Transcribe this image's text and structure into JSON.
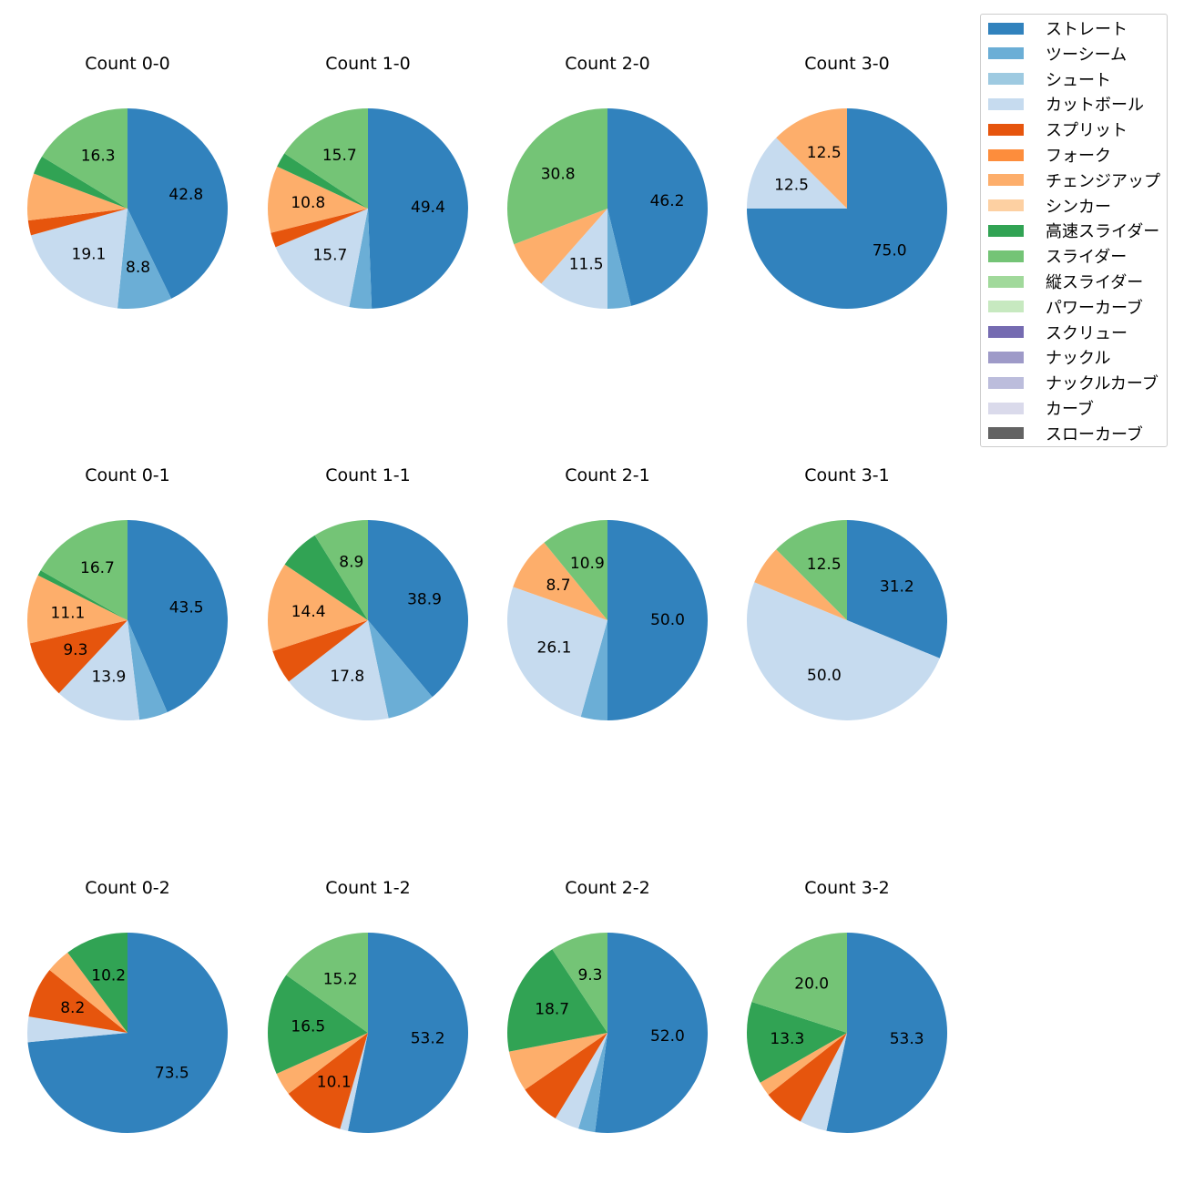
{
  "chart_data": {
    "type": "pie",
    "categories": [
      {
        "key": "straight",
        "label": "ストレート",
        "color": "#3182bd"
      },
      {
        "key": "twoseam",
        "label": "ツーシーム",
        "color": "#6baed6"
      },
      {
        "key": "shoot",
        "label": "シュート",
        "color": "#9ecae1"
      },
      {
        "key": "cutball",
        "label": "カットボール",
        "color": "#c6dbef"
      },
      {
        "key": "split",
        "label": "スプリット",
        "color": "#e6550d"
      },
      {
        "key": "fork",
        "label": "フォーク",
        "color": "#fd8d3c"
      },
      {
        "key": "changeup",
        "label": "チェンジアップ",
        "color": "#fdae6b"
      },
      {
        "key": "sinker",
        "label": "シンカー",
        "color": "#fdd0a2"
      },
      {
        "key": "fast_slider",
        "label": "高速スライダー",
        "color": "#31a354"
      },
      {
        "key": "slider",
        "label": "スライダー",
        "color": "#74c476"
      },
      {
        "key": "vslider",
        "label": "縦スライダー",
        "color": "#a1d99b"
      },
      {
        "key": "powercurve",
        "label": "パワーカーブ",
        "color": "#c7e9c0"
      },
      {
        "key": "screw",
        "label": "スクリュー",
        "color": "#756bb1"
      },
      {
        "key": "knuckle",
        "label": "ナックル",
        "color": "#9e9ac8"
      },
      {
        "key": "knucklecurve",
        "label": "ナックルカーブ",
        "color": "#bcbddc"
      },
      {
        "key": "curve",
        "label": "カーブ",
        "color": "#dadaeb"
      },
      {
        "key": "slowcurve",
        "label": "スローカーブ",
        "color": "#636363"
      }
    ],
    "charts": [
      {
        "title": "Count 0-0",
        "slices": [
          {
            "category": "straight",
            "value": 42.8,
            "label": "42.8"
          },
          {
            "category": "twoseam",
            "value": 8.8,
            "label": "8.8"
          },
          {
            "category": "cutball",
            "value": 19.1,
            "label": "19.1"
          },
          {
            "category": "split",
            "value": 2.4,
            "label": ""
          },
          {
            "category": "changeup",
            "value": 7.6,
            "label": ""
          },
          {
            "category": "fast_slider",
            "value": 3.0,
            "label": ""
          },
          {
            "category": "slider",
            "value": 16.3,
            "label": "16.3"
          }
        ]
      },
      {
        "title": "Count 1-0",
        "slices": [
          {
            "category": "straight",
            "value": 49.4,
            "label": "49.4"
          },
          {
            "category": "twoseam",
            "value": 3.6,
            "label": ""
          },
          {
            "category": "cutball",
            "value": 15.7,
            "label": "15.7"
          },
          {
            "category": "split",
            "value": 2.4,
            "label": ""
          },
          {
            "category": "changeup",
            "value": 10.8,
            "label": "10.8"
          },
          {
            "category": "fast_slider",
            "value": 2.4,
            "label": ""
          },
          {
            "category": "slider",
            "value": 15.7,
            "label": "15.7"
          }
        ]
      },
      {
        "title": "Count 2-0",
        "slices": [
          {
            "category": "straight",
            "value": 46.2,
            "label": "46.2"
          },
          {
            "category": "twoseam",
            "value": 3.8,
            "label": ""
          },
          {
            "category": "cutball",
            "value": 11.5,
            "label": "11.5"
          },
          {
            "category": "changeup",
            "value": 7.7,
            "label": ""
          },
          {
            "category": "slider",
            "value": 30.8,
            "label": "30.8"
          }
        ]
      },
      {
        "title": "Count 3-0",
        "slices": [
          {
            "category": "straight",
            "value": 75.0,
            "label": "75.0"
          },
          {
            "category": "cutball",
            "value": 12.5,
            "label": "12.5"
          },
          {
            "category": "changeup",
            "value": 12.5,
            "label": "12.5"
          }
        ]
      },
      {
        "title": "Count 0-1",
        "slices": [
          {
            "category": "straight",
            "value": 43.5,
            "label": "43.5"
          },
          {
            "category": "twoseam",
            "value": 4.6,
            "label": ""
          },
          {
            "category": "cutball",
            "value": 13.9,
            "label": "13.9"
          },
          {
            "category": "split",
            "value": 9.3,
            "label": "9.3"
          },
          {
            "category": "changeup",
            "value": 11.1,
            "label": "11.1"
          },
          {
            "category": "fast_slider",
            "value": 0.9,
            "label": ""
          },
          {
            "category": "slider",
            "value": 16.7,
            "label": "16.7"
          }
        ]
      },
      {
        "title": "Count 1-1",
        "slices": [
          {
            "category": "straight",
            "value": 38.9,
            "label": "38.9"
          },
          {
            "category": "twoseam",
            "value": 7.8,
            "label": ""
          },
          {
            "category": "cutball",
            "value": 17.8,
            "label": "17.8"
          },
          {
            "category": "split",
            "value": 5.5,
            "label": ""
          },
          {
            "category": "changeup",
            "value": 14.4,
            "label": "14.4"
          },
          {
            "category": "fast_slider",
            "value": 6.7,
            "label": ""
          },
          {
            "category": "slider",
            "value": 8.9,
            "label": "8.9"
          }
        ]
      },
      {
        "title": "Count 2-1",
        "slices": [
          {
            "category": "straight",
            "value": 50.0,
            "label": "50.0"
          },
          {
            "category": "twoseam",
            "value": 4.3,
            "label": ""
          },
          {
            "category": "cutball",
            "value": 26.1,
            "label": "26.1"
          },
          {
            "category": "changeup",
            "value": 8.7,
            "label": "8.7"
          },
          {
            "category": "slider",
            "value": 10.9,
            "label": "10.9"
          }
        ]
      },
      {
        "title": "Count 3-1",
        "slices": [
          {
            "category": "straight",
            "value": 31.2,
            "label": "31.2"
          },
          {
            "category": "cutball",
            "value": 50.0,
            "label": "50.0"
          },
          {
            "category": "changeup",
            "value": 6.3,
            "label": ""
          },
          {
            "category": "slider",
            "value": 12.5,
            "label": "12.5"
          }
        ]
      },
      {
        "title": "Count 0-2",
        "slices": [
          {
            "category": "straight",
            "value": 73.5,
            "label": "73.5"
          },
          {
            "category": "cutball",
            "value": 4.1,
            "label": ""
          },
          {
            "category": "split",
            "value": 8.2,
            "label": "8.2"
          },
          {
            "category": "changeup",
            "value": 4.0,
            "label": ""
          },
          {
            "category": "fast_slider",
            "value": 10.2,
            "label": "10.2"
          }
        ]
      },
      {
        "title": "Count 1-2",
        "slices": [
          {
            "category": "straight",
            "value": 53.2,
            "label": "53.2"
          },
          {
            "category": "cutball",
            "value": 1.3,
            "label": ""
          },
          {
            "category": "split",
            "value": 10.1,
            "label": "10.1"
          },
          {
            "category": "changeup",
            "value": 3.7,
            "label": ""
          },
          {
            "category": "fast_slider",
            "value": 16.5,
            "label": "16.5"
          },
          {
            "category": "slider",
            "value": 15.2,
            "label": "15.2"
          }
        ]
      },
      {
        "title": "Count 2-2",
        "slices": [
          {
            "category": "straight",
            "value": 52.0,
            "label": "52.0"
          },
          {
            "category": "twoseam",
            "value": 2.7,
            "label": ""
          },
          {
            "category": "cutball",
            "value": 4.0,
            "label": ""
          },
          {
            "category": "split",
            "value": 6.7,
            "label": ""
          },
          {
            "category": "changeup",
            "value": 6.6,
            "label": ""
          },
          {
            "category": "fast_slider",
            "value": 18.7,
            "label": "18.7"
          },
          {
            "category": "slider",
            "value": 9.3,
            "label": "9.3"
          }
        ]
      },
      {
        "title": "Count 3-2",
        "slices": [
          {
            "category": "straight",
            "value": 53.3,
            "label": "53.3"
          },
          {
            "category": "cutball",
            "value": 4.4,
            "label": ""
          },
          {
            "category": "split",
            "value": 6.7,
            "label": ""
          },
          {
            "category": "changeup",
            "value": 2.3,
            "label": ""
          },
          {
            "category": "fast_slider",
            "value": 13.3,
            "label": "13.3"
          },
          {
            "category": "slider",
            "value": 20.0,
            "label": "20.0"
          }
        ]
      }
    ],
    "legend_position": "top-right",
    "start_angle_deg": 90,
    "direction": "clockwise"
  }
}
